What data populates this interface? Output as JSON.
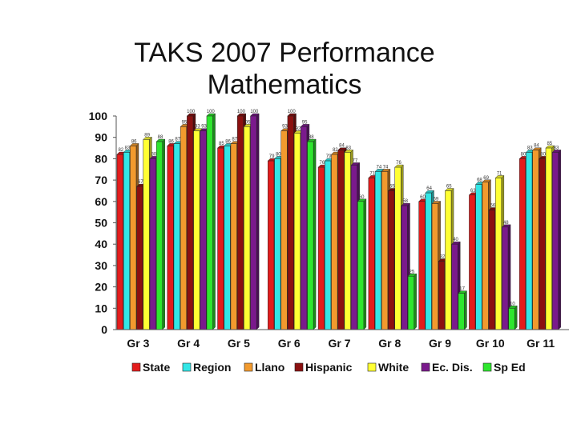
{
  "chart_data": {
    "type": "bar",
    "title_lines": [
      "TAKS 2007 Performance",
      "Mathematics"
    ],
    "categories": [
      "Gr 3",
      "Gr 4",
      "Gr 5",
      "Gr 6",
      "Gr 7",
      "Gr 8",
      "Gr 9",
      "Gr 10",
      "Gr 11"
    ],
    "ylim": [
      0,
      100
    ],
    "yticks": [
      0,
      10,
      20,
      30,
      40,
      50,
      60,
      70,
      80,
      90,
      100
    ],
    "grid": false,
    "legend_position": "bottom",
    "series": [
      {
        "name": "State",
        "color": "#e31c1c",
        "values": [
          82,
          86,
          85,
          79,
          76,
          71,
          60,
          63,
          80
        ]
      },
      {
        "name": "Region",
        "color": "#33e6e6",
        "values": [
          83,
          87,
          86,
          80,
          79,
          74,
          64,
          68,
          83
        ]
      },
      {
        "name": "Llano",
        "color": "#f29a2e",
        "values": [
          86,
          95,
          87,
          93,
          82,
          74,
          59,
          69,
          84
        ]
      },
      {
        "name": "Hispanic",
        "color": "#8b1010",
        "values": [
          67,
          100,
          100,
          100,
          84,
          65,
          32,
          56,
          80
        ]
      },
      {
        "name": "White",
        "color": "#ffff33",
        "values": [
          89,
          93,
          95,
          92,
          83,
          76,
          65,
          71,
          85
        ]
      },
      {
        "name": "Ec. Dis.",
        "color": "#7a1a8c",
        "values": [
          80,
          93,
          100,
          95,
          77,
          58,
          40,
          48,
          83
        ]
      },
      {
        "name": "Sp Ed",
        "color": "#2ee62e",
        "values": [
          88,
          100,
          null,
          88,
          60,
          25,
          17,
          10,
          null
        ]
      }
    ]
  }
}
